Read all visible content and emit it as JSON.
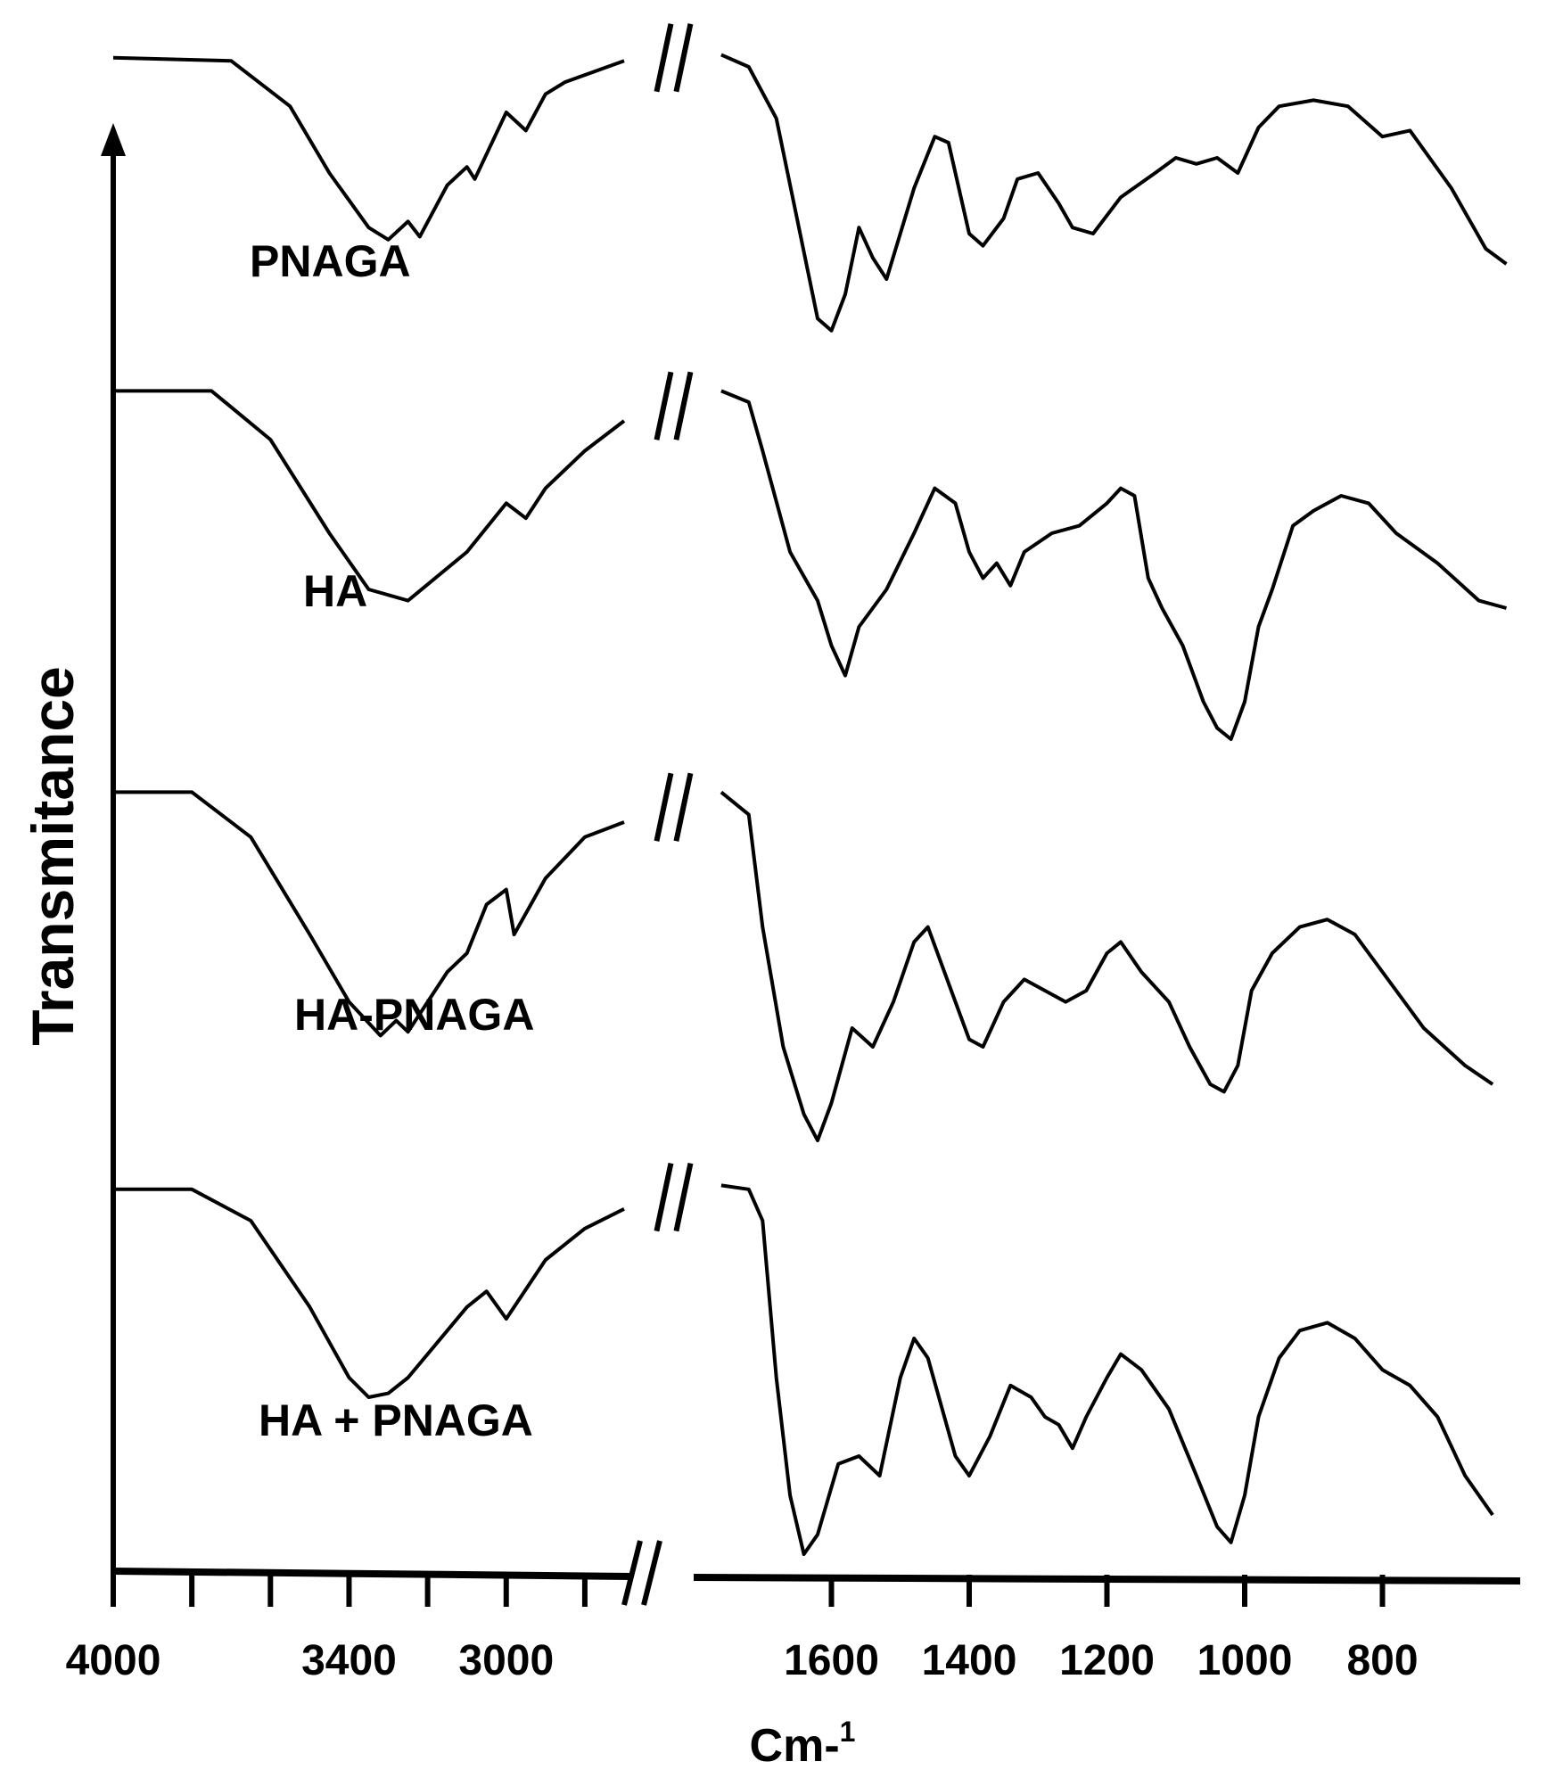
{
  "chart_data": {
    "type": "line",
    "title": "",
    "xlabel": "Cm-",
    "xlabel_superscript": "1",
    "ylabel": "Transmitance",
    "x_axis_break": true,
    "x_segments": [
      {
        "range": [
          4000,
          2700
        ],
        "ticks": [
          4000,
          3800,
          3600,
          3400,
          3200,
          3000,
          2800
        ],
        "tick_labels": [
          "4000",
          "3400",
          "3000"
        ]
      },
      {
        "range": [
          1800,
          600
        ],
        "ticks": [
          1600,
          1400,
          1200,
          1000,
          800
        ],
        "tick_labels": [
          "1600",
          "1400",
          "1200",
          "1000",
          "800"
        ]
      }
    ],
    "stacked_offset": true,
    "series": [
      {
        "name": "PNAGA",
        "points": [
          [
            4000,
            0.98
          ],
          [
            3700,
            0.97
          ],
          [
            3550,
            0.82
          ],
          [
            3450,
            0.6
          ],
          [
            3350,
            0.42
          ],
          [
            3300,
            0.38
          ],
          [
            3250,
            0.44
          ],
          [
            3220,
            0.39
          ],
          [
            3150,
            0.56
          ],
          [
            3100,
            0.62
          ],
          [
            3080,
            0.58
          ],
          [
            3000,
            0.8
          ],
          [
            2950,
            0.74
          ],
          [
            2900,
            0.86
          ],
          [
            2850,
            0.9
          ],
          [
            2700,
            0.97
          ],
          [
            1760,
            0.99
          ],
          [
            1720,
            0.95
          ],
          [
            1680,
            0.78
          ],
          [
            1650,
            0.45
          ],
          [
            1620,
            0.12
          ],
          [
            1600,
            0.08
          ],
          [
            1580,
            0.2
          ],
          [
            1560,
            0.42
          ],
          [
            1540,
            0.32
          ],
          [
            1520,
            0.25
          ],
          [
            1480,
            0.55
          ],
          [
            1450,
            0.72
          ],
          [
            1430,
            0.7
          ],
          [
            1400,
            0.4
          ],
          [
            1380,
            0.36
          ],
          [
            1350,
            0.45
          ],
          [
            1330,
            0.58
          ],
          [
            1300,
            0.6
          ],
          [
            1270,
            0.5
          ],
          [
            1250,
            0.42
          ],
          [
            1220,
            0.4
          ],
          [
            1180,
            0.52
          ],
          [
            1130,
            0.6
          ],
          [
            1100,
            0.65
          ],
          [
            1070,
            0.63
          ],
          [
            1040,
            0.65
          ],
          [
            1010,
            0.6
          ],
          [
            980,
            0.75
          ],
          [
            950,
            0.82
          ],
          [
            900,
            0.84
          ],
          [
            850,
            0.82
          ],
          [
            800,
            0.72
          ],
          [
            760,
            0.74
          ],
          [
            700,
            0.55
          ],
          [
            650,
            0.35
          ],
          [
            620,
            0.3
          ]
        ]
      },
      {
        "name": "HA",
        "points": [
          [
            4000,
            0.98
          ],
          [
            3750,
            0.98
          ],
          [
            3600,
            0.85
          ],
          [
            3450,
            0.6
          ],
          [
            3350,
            0.45
          ],
          [
            3250,
            0.42
          ],
          [
            3100,
            0.55
          ],
          [
            3000,
            0.68
          ],
          [
            2950,
            0.64
          ],
          [
            2900,
            0.72
          ],
          [
            2800,
            0.82
          ],
          [
            2700,
            0.9
          ],
          [
            1760,
            0.98
          ],
          [
            1720,
            0.95
          ],
          [
            1700,
            0.82
          ],
          [
            1660,
            0.55
          ],
          [
            1620,
            0.42
          ],
          [
            1600,
            0.3
          ],
          [
            1580,
            0.22
          ],
          [
            1560,
            0.35
          ],
          [
            1520,
            0.45
          ],
          [
            1480,
            0.6
          ],
          [
            1450,
            0.72
          ],
          [
            1420,
            0.68
          ],
          [
            1400,
            0.55
          ],
          [
            1380,
            0.48
          ],
          [
            1360,
            0.52
          ],
          [
            1340,
            0.46
          ],
          [
            1320,
            0.55
          ],
          [
            1280,
            0.6
          ],
          [
            1240,
            0.62
          ],
          [
            1200,
            0.68
          ],
          [
            1180,
            0.72
          ],
          [
            1160,
            0.7
          ],
          [
            1140,
            0.48
          ],
          [
            1120,
            0.4
          ],
          [
            1090,
            0.3
          ],
          [
            1060,
            0.15
          ],
          [
            1040,
            0.08
          ],
          [
            1020,
            0.05
          ],
          [
            1000,
            0.15
          ],
          [
            980,
            0.35
          ],
          [
            960,
            0.45
          ],
          [
            930,
            0.62
          ],
          [
            900,
            0.66
          ],
          [
            860,
            0.7
          ],
          [
            820,
            0.68
          ],
          [
            780,
            0.6
          ],
          [
            720,
            0.52
          ],
          [
            660,
            0.42
          ],
          [
            620,
            0.4
          ]
        ]
      },
      {
        "name": "HA-PNAGA",
        "points": [
          [
            4000,
            0.98
          ],
          [
            3800,
            0.98
          ],
          [
            3650,
            0.86
          ],
          [
            3500,
            0.6
          ],
          [
            3400,
            0.42
          ],
          [
            3320,
            0.33
          ],
          [
            3280,
            0.37
          ],
          [
            3250,
            0.34
          ],
          [
            3150,
            0.5
          ],
          [
            3100,
            0.55
          ],
          [
            3050,
            0.68
          ],
          [
            3000,
            0.72
          ],
          [
            2980,
            0.6
          ],
          [
            2900,
            0.75
          ],
          [
            2800,
            0.86
          ],
          [
            2700,
            0.9
          ],
          [
            1760,
            0.98
          ],
          [
            1720,
            0.92
          ],
          [
            1700,
            0.62
          ],
          [
            1670,
            0.3
          ],
          [
            1640,
            0.12
          ],
          [
            1620,
            0.05
          ],
          [
            1600,
            0.15
          ],
          [
            1570,
            0.35
          ],
          [
            1540,
            0.3
          ],
          [
            1510,
            0.42
          ],
          [
            1480,
            0.58
          ],
          [
            1460,
            0.62
          ],
          [
            1440,
            0.52
          ],
          [
            1400,
            0.32
          ],
          [
            1380,
            0.3
          ],
          [
            1350,
            0.42
          ],
          [
            1320,
            0.48
          ],
          [
            1290,
            0.45
          ],
          [
            1260,
            0.42
          ],
          [
            1230,
            0.45
          ],
          [
            1200,
            0.55
          ],
          [
            1180,
            0.58
          ],
          [
            1150,
            0.5
          ],
          [
            1110,
            0.42
          ],
          [
            1080,
            0.3
          ],
          [
            1050,
            0.2
          ],
          [
            1030,
            0.18
          ],
          [
            1010,
            0.25
          ],
          [
            990,
            0.45
          ],
          [
            960,
            0.55
          ],
          [
            920,
            0.62
          ],
          [
            880,
            0.64
          ],
          [
            840,
            0.6
          ],
          [
            800,
            0.5
          ],
          [
            740,
            0.35
          ],
          [
            680,
            0.25
          ],
          [
            640,
            0.2
          ]
        ]
      },
      {
        "name": "HA + PNAGA",
        "points": [
          [
            4000,
            0.98
          ],
          [
            3800,
            0.98
          ],
          [
            3650,
            0.9
          ],
          [
            3500,
            0.68
          ],
          [
            3400,
            0.5
          ],
          [
            3350,
            0.45
          ],
          [
            3300,
            0.46
          ],
          [
            3250,
            0.5
          ],
          [
            3150,
            0.62
          ],
          [
            3100,
            0.68
          ],
          [
            3050,
            0.72
          ],
          [
            3000,
            0.65
          ],
          [
            2900,
            0.8
          ],
          [
            2800,
            0.88
          ],
          [
            2700,
            0.93
          ],
          [
            1760,
            0.99
          ],
          [
            1720,
            0.98
          ],
          [
            1700,
            0.9
          ],
          [
            1680,
            0.5
          ],
          [
            1660,
            0.2
          ],
          [
            1640,
            0.05
          ],
          [
            1620,
            0.1
          ],
          [
            1590,
            0.28
          ],
          [
            1560,
            0.3
          ],
          [
            1530,
            0.25
          ],
          [
            1500,
            0.5
          ],
          [
            1480,
            0.6
          ],
          [
            1460,
            0.55
          ],
          [
            1420,
            0.3
          ],
          [
            1400,
            0.25
          ],
          [
            1370,
            0.35
          ],
          [
            1340,
            0.48
          ],
          [
            1310,
            0.45
          ],
          [
            1290,
            0.4
          ],
          [
            1270,
            0.38
          ],
          [
            1250,
            0.32
          ],
          [
            1230,
            0.4
          ],
          [
            1200,
            0.5
          ],
          [
            1180,
            0.56
          ],
          [
            1150,
            0.52
          ],
          [
            1110,
            0.42
          ],
          [
            1070,
            0.25
          ],
          [
            1040,
            0.12
          ],
          [
            1020,
            0.08
          ],
          [
            1000,
            0.2
          ],
          [
            980,
            0.4
          ],
          [
            950,
            0.55
          ],
          [
            920,
            0.62
          ],
          [
            880,
            0.64
          ],
          [
            840,
            0.6
          ],
          [
            800,
            0.52
          ],
          [
            760,
            0.48
          ],
          [
            720,
            0.4
          ],
          [
            680,
            0.25
          ],
          [
            640,
            0.15
          ]
        ]
      }
    ]
  }
}
